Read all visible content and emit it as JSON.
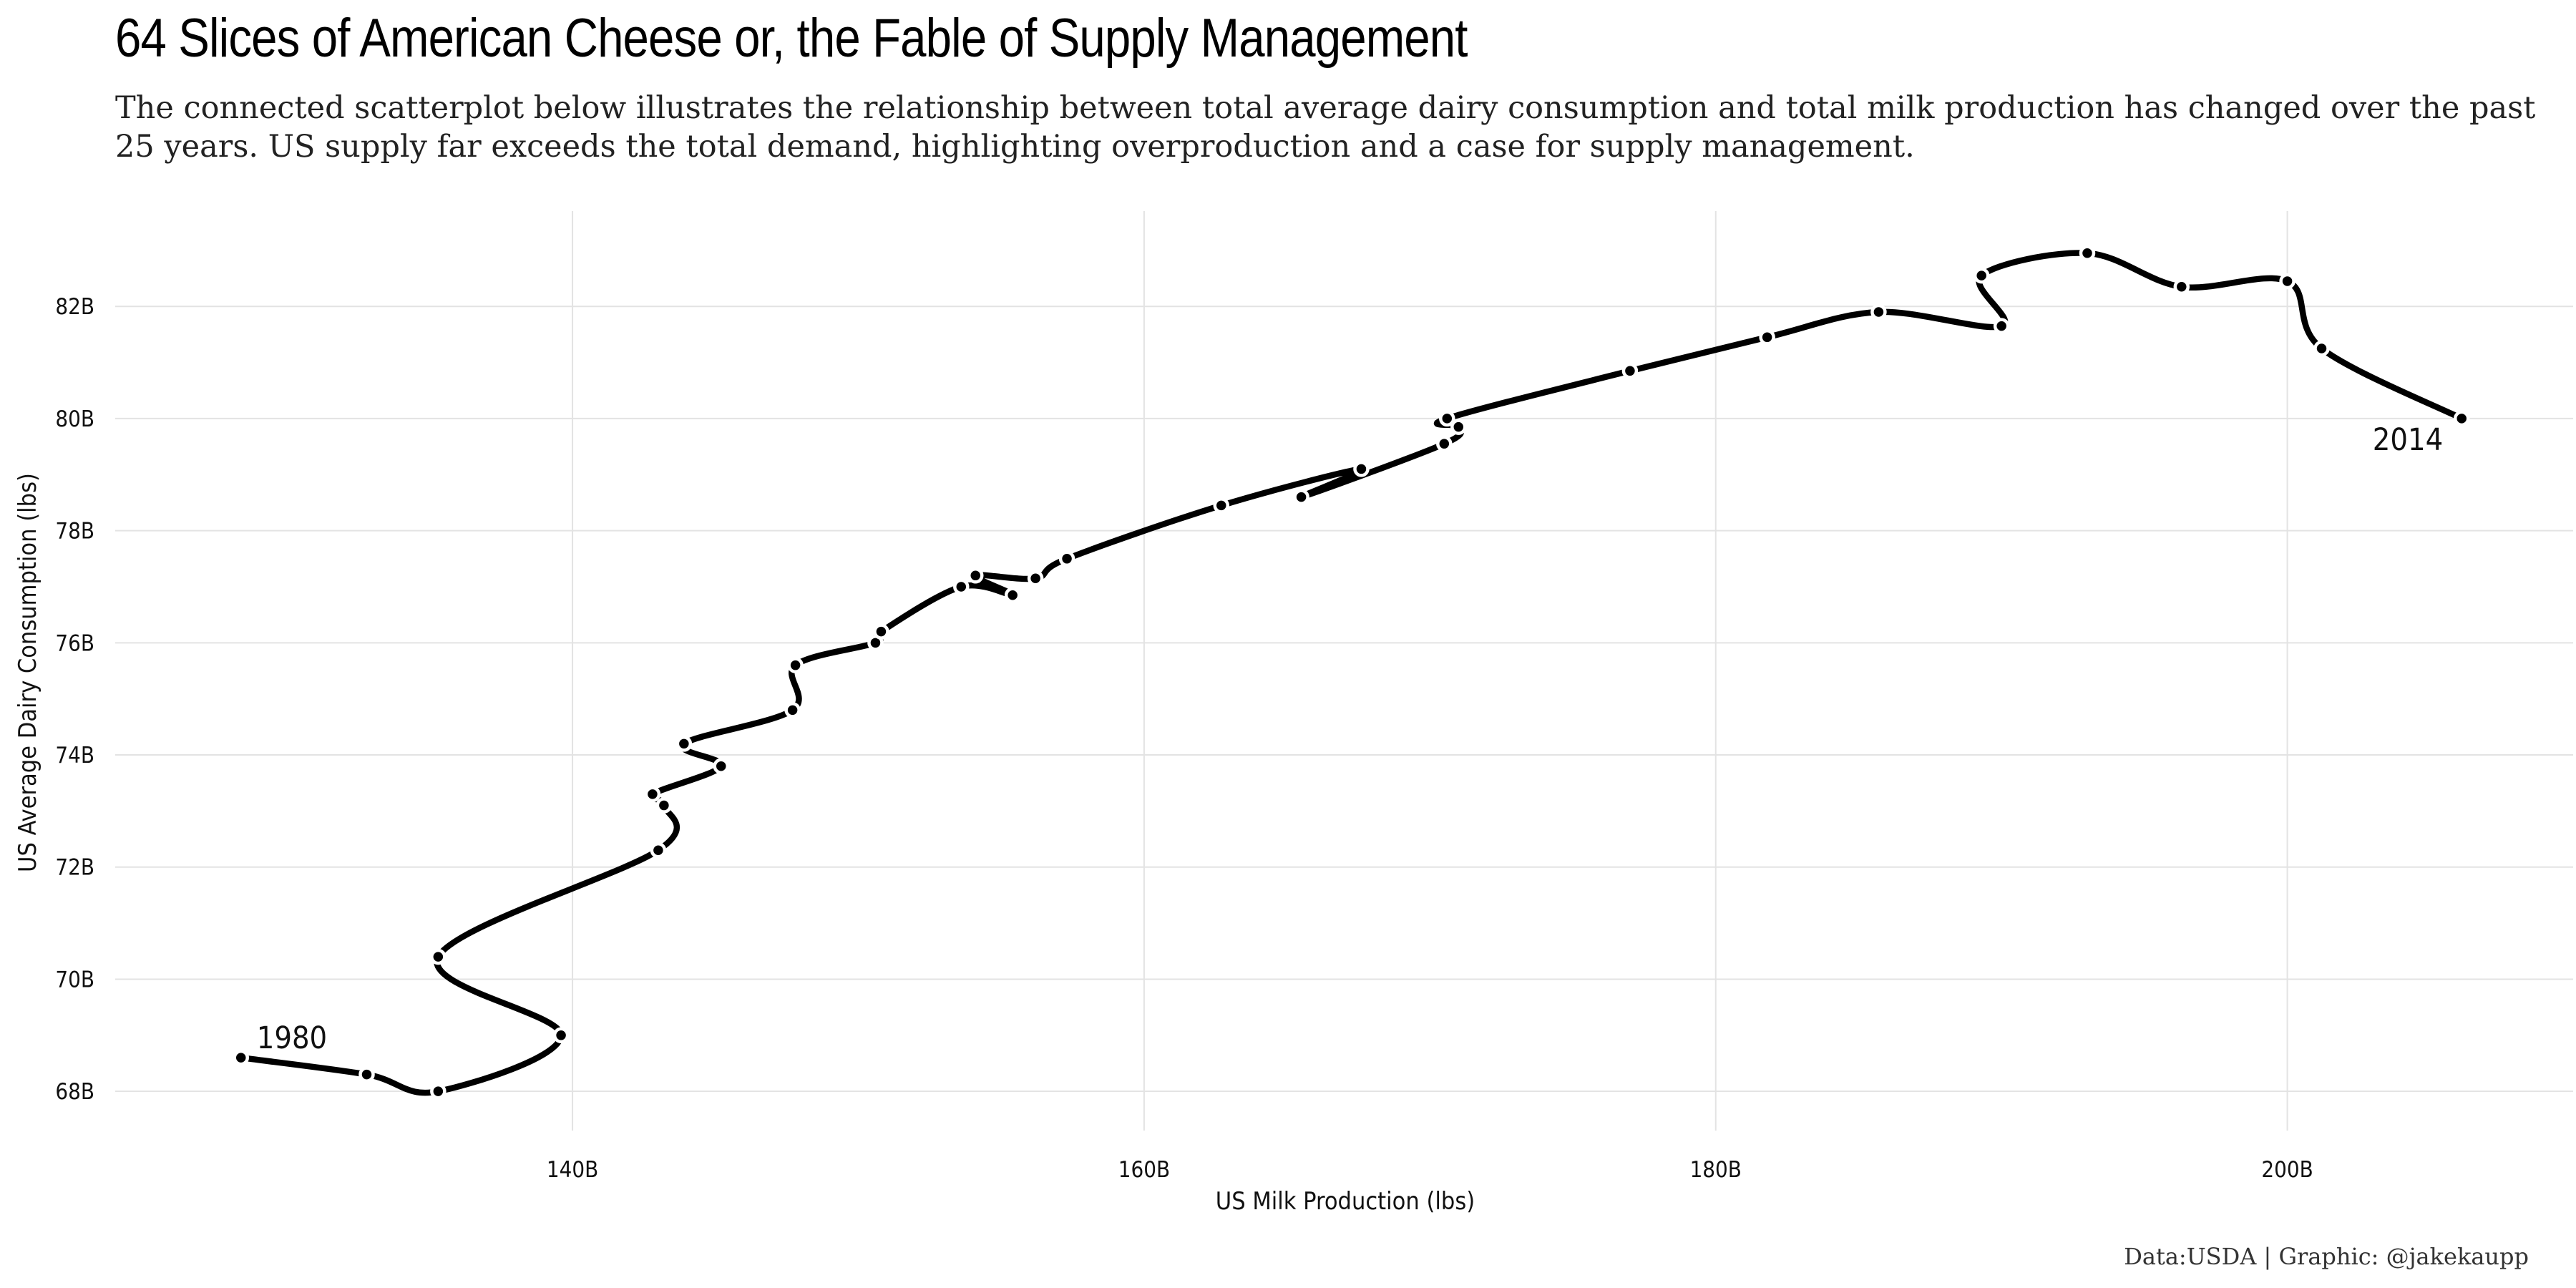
{
  "title": "64 Slices of American Cheese or, the Fable of Supply Management",
  "subtitle": "The connected scatterplot below illustrates the relationship between total average dairy consumption and total milk production has changed over the past 25 years. US supply far exceeds the total demand, highlighting overproduction and a case for supply management.",
  "caption": "Data:USDA | Graphic: @jakekaupp",
  "chart_data": {
    "type": "scatter",
    "connected": true,
    "xlabel": "US Milk Production (lbs)",
    "ylabel": "US Average Dairy Consumption (lbs)",
    "xlim": [
      124,
      210
    ],
    "ylim": [
      67.3,
      83.7
    ],
    "x_ticks": [
      140,
      160,
      180,
      200
    ],
    "x_tick_labels": [
      "140B",
      "160B",
      "180B",
      "200B"
    ],
    "y_ticks": [
      68,
      70,
      72,
      74,
      76,
      78,
      80,
      82
    ],
    "y_tick_labels": [
      "68B",
      "70B",
      "72B",
      "74B",
      "76B",
      "78B",
      "80B",
      "82B"
    ],
    "grid": true,
    "line_color": "#000000",
    "point_color": "#000000",
    "point_outline_color": "#ffffff",
    "series": [
      {
        "x": [
          128.4,
          132.8,
          135.3,
          139.6,
          135.3,
          143.0,
          143.2,
          142.8,
          145.2,
          143.9,
          147.7,
          147.8,
          150.6,
          150.8,
          153.6,
          155.4,
          154.1,
          156.2,
          157.3,
          162.7,
          167.6,
          165.5,
          170.5,
          171.0,
          170.6,
          177.0,
          181.8,
          185.7,
          190.0,
          189.3,
          193.0,
          196.3,
          200.0,
          201.2,
          206.1
        ],
        "y": [
          68.6,
          68.3,
          68.0,
          69.0,
          70.4,
          72.3,
          73.1,
          73.3,
          73.8,
          74.2,
          74.8,
          75.6,
          76.0,
          76.2,
          77.0,
          76.85,
          77.2,
          77.15,
          77.5,
          78.45,
          79.1,
          78.6,
          79.55,
          79.85,
          80.0,
          80.85,
          81.45,
          81.9,
          81.65,
          82.55,
          82.95,
          82.35,
          82.45,
          81.25,
          80.0
        ]
      }
    ],
    "annotations": [
      {
        "text": "1980",
        "x": 128.4,
        "y": 68.6
      },
      {
        "text": "2014",
        "x": 206.1,
        "y": 80.0
      }
    ]
  }
}
